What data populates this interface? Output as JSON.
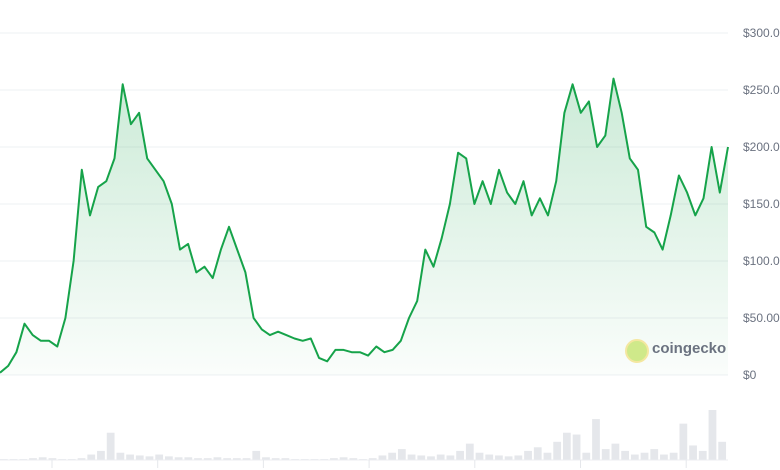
{
  "chart_data": {
    "type": "area",
    "title": "",
    "xlabel": "",
    "ylabel": "",
    "ylim": [
      0,
      300
    ],
    "y_ticks": [
      "$0",
      "$50.00",
      "$100.00",
      "$150.00",
      "$200.00",
      "$250.00",
      "$300.00"
    ],
    "y_tick_values": [
      0,
      50,
      100,
      150,
      200,
      250,
      300
    ],
    "grid": true,
    "line_color": "#16a34a",
    "fill_color": "#16a34a",
    "price_values": [
      2,
      8,
      20,
      45,
      35,
      30,
      30,
      25,
      50,
      100,
      180,
      140,
      165,
      170,
      190,
      255,
      220,
      230,
      190,
      180,
      170,
      150,
      110,
      115,
      90,
      95,
      85,
      110,
      130,
      110,
      90,
      50,
      40,
      35,
      38,
      35,
      32,
      30,
      32,
      15,
      12,
      22,
      22,
      20,
      20,
      17,
      25,
      20,
      22,
      30,
      50,
      65,
      110,
      95,
      120,
      150,
      195,
      190,
      150,
      170,
      150,
      180,
      160,
      150,
      170,
      140,
      155,
      140,
      170,
      230,
      255,
      230,
      240,
      200,
      210,
      260,
      230,
      190,
      180,
      130,
      125,
      110,
      140,
      175,
      160,
      140,
      155,
      200,
      160,
      200
    ],
    "volume_values": [
      1,
      1,
      1,
      2,
      3,
      2,
      1,
      1,
      2,
      6,
      10,
      30,
      8,
      6,
      5,
      4,
      6,
      4,
      3,
      3,
      2,
      2,
      3,
      2,
      2,
      2,
      10,
      3,
      2,
      2,
      1,
      1,
      1,
      1,
      2,
      3,
      2,
      1,
      2,
      5,
      8,
      12,
      6,
      5,
      4,
      6,
      5,
      10,
      18,
      8,
      6,
      5,
      4,
      5,
      10,
      14,
      8,
      20,
      30,
      28,
      8,
      45,
      12,
      18,
      10,
      6,
      8,
      12,
      6,
      8,
      40,
      16,
      10,
      55,
      20
    ],
    "x_tick_count": 7
  },
  "watermark": {
    "text": "coingecko"
  }
}
